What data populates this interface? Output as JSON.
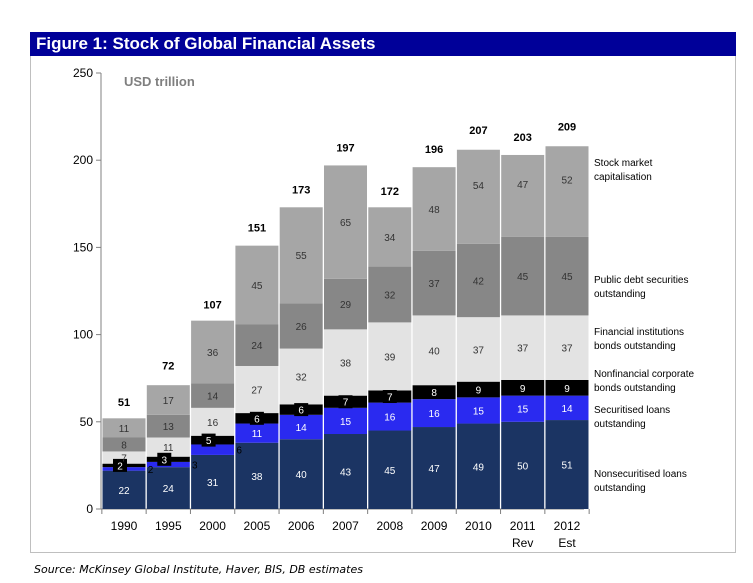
{
  "figure": {
    "title": "Figure 1: Stock of Global Financial Assets",
    "source": "Source: McKinsey Global Institute, Haver, BIS, DB estimates"
  },
  "chart_data": {
    "type": "bar",
    "stacked": true,
    "unit_label": "USD trillion",
    "categories": [
      "1990",
      "1995",
      "2000",
      "2005",
      "2006",
      "2007",
      "2008",
      "2009",
      "2010",
      "2011",
      "2012"
    ],
    "category_sublabels": [
      "",
      "",
      "",
      "",
      "",
      "",
      "",
      "",
      "",
      "Rev",
      "Est"
    ],
    "ylim": [
      0,
      250
    ],
    "yticks": [
      0,
      50,
      100,
      150,
      200,
      250
    ],
    "series": [
      {
        "name": "Nonsecuritised loans outstanding",
        "color": "#1b3463",
        "text_color": "#ffffff",
        "values": [
          22,
          24,
          31,
          38,
          40,
          43,
          45,
          47,
          49,
          50,
          51
        ]
      },
      {
        "name": "Securitised loans outstanding",
        "color": "#2a2af0",
        "text_color": "#ffffff",
        "values": [
          2,
          3,
          6,
          11,
          14,
          15,
          16,
          16,
          15,
          15,
          14
        ]
      },
      {
        "name": "Nonfinancial corporate bonds outstanding",
        "color": "#000000",
        "text_color": "#ffffff",
        "values": [
          2,
          3,
          5,
          6,
          6,
          7,
          7,
          8,
          9,
          9,
          9
        ]
      },
      {
        "name": "Financial institutions bonds outstanding",
        "color": "#e3e3e3",
        "text_color": "#333333",
        "values": [
          7,
          11,
          16,
          27,
          32,
          38,
          39,
          40,
          37,
          37,
          37
        ]
      },
      {
        "name": "Public debt securities outstanding",
        "color": "#878787",
        "text_color": "#333333",
        "values": [
          8,
          13,
          14,
          24,
          26,
          29,
          32,
          37,
          42,
          45,
          45
        ]
      },
      {
        "name": "Stock market capitalisation",
        "color": "#a6a6a6",
        "text_color": "#333333",
        "values": [
          11,
          17,
          36,
          45,
          55,
          65,
          34,
          48,
          54,
          47,
          52
        ]
      }
    ],
    "series_value_labels": [
      [
        "22",
        "24",
        "31",
        "38",
        "40",
        "43",
        "45",
        "47",
        "49",
        "50",
        "51"
      ],
      [
        "2",
        "3",
        "6",
        "11",
        "14",
        "15",
        "16",
        "16",
        "15",
        "15",
        "14"
      ],
      [
        "2",
        "3",
        "5",
        "6",
        "6",
        "7",
        "7",
        "8",
        "9",
        "9",
        "9"
      ],
      [
        "7",
        "11",
        "16",
        "27",
        "32",
        "38",
        "39",
        "40",
        "37",
        "37",
        "37"
      ],
      [
        "8",
        "13",
        "14",
        "24",
        "26",
        "29",
        "32",
        "37",
        "42",
        "45",
        "45"
      ],
      [
        "11",
        "17",
        "36",
        "45",
        "55",
        "65",
        "34",
        "48",
        "54",
        "47",
        "52"
      ]
    ],
    "totals": [
      51,
      72,
      107,
      151,
      173,
      197,
      172,
      196,
      207,
      203,
      209
    ],
    "total_labels": [
      "51",
      "72",
      "107",
      "151",
      "173",
      "197",
      "172",
      "196",
      "207",
      "203",
      "209"
    ],
    "legend_lines": [
      [
        "Nonsecuritised loans",
        "outstanding"
      ],
      [
        "Securitised loans",
        "outstanding"
      ],
      [
        "Nonfinancial corporate",
        "bonds outstanding"
      ],
      [
        "Financial institutions",
        "bonds outstanding"
      ],
      [
        "Public debt securities",
        "outstanding"
      ],
      [
        "Stock market",
        "capitalisation"
      ]
    ],
    "legend_placement": "right",
    "grid": false
  }
}
